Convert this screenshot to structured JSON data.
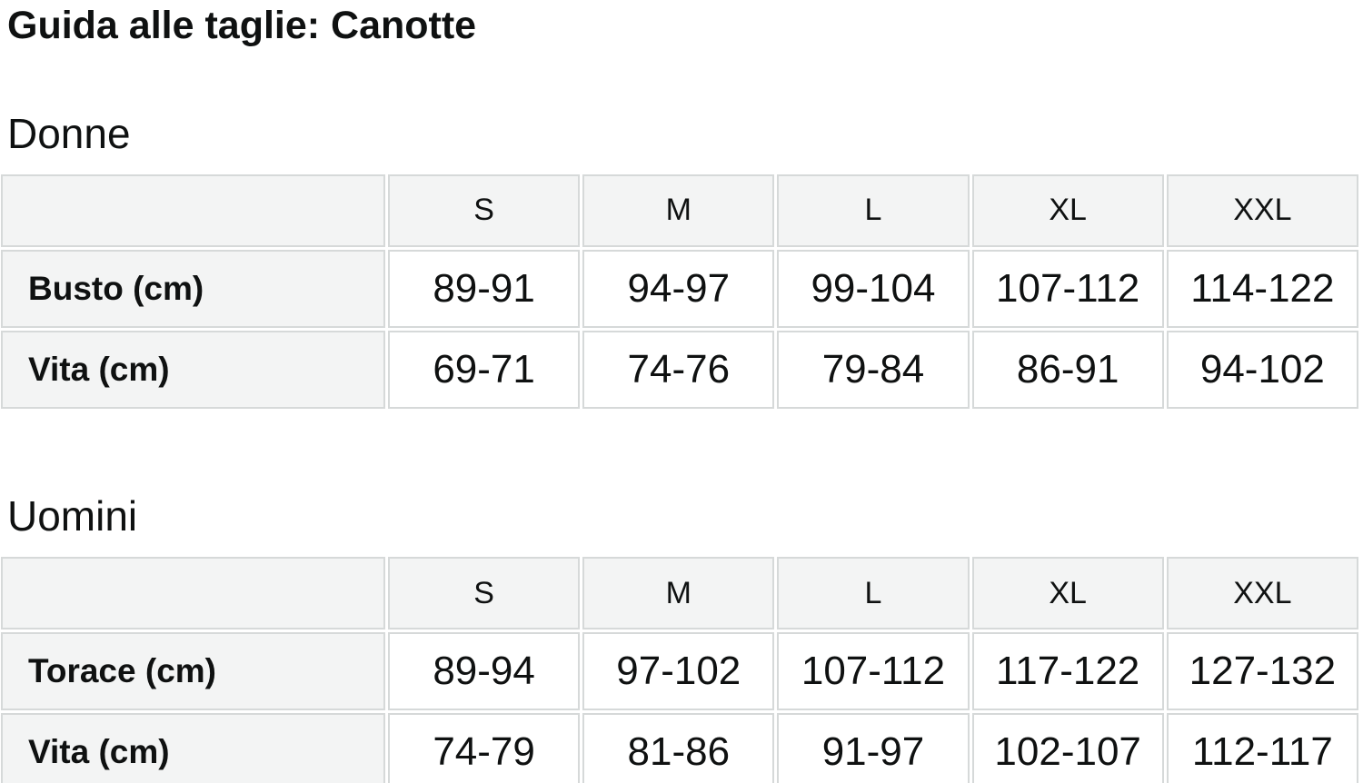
{
  "page": {
    "title": "Guida alle taglie: Canotte"
  },
  "colors": {
    "text": "#0f1111",
    "cell_border": "#d6d9d9",
    "header_cell_bg": "#f3f4f4",
    "data_cell_bg": "#ffffff",
    "page_bg": "#ffffff"
  },
  "sections": [
    {
      "heading": "Donne",
      "table": {
        "columns": [
          "S",
          "M",
          "L",
          "XL",
          "XXL"
        ],
        "rows": [
          {
            "label": "Busto (cm)",
            "values": [
              "89-91",
              "94-97",
              "99-104",
              "107-112",
              "114-122"
            ]
          },
          {
            "label": "Vita (cm)",
            "values": [
              "69-71",
              "74-76",
              "79-84",
              "86-91",
              "94-102"
            ]
          }
        ]
      }
    },
    {
      "heading": "Uomini",
      "table": {
        "columns": [
          "S",
          "M",
          "L",
          "XL",
          "XXL"
        ],
        "rows": [
          {
            "label": "Torace (cm)",
            "values": [
              "89-94",
              "97-102",
              "107-112",
              "117-122",
              "127-132"
            ]
          },
          {
            "label": "Vita (cm)",
            "values": [
              "74-79",
              "81-86",
              "91-97",
              "102-107",
              "112-117"
            ]
          }
        ]
      }
    }
  ]
}
